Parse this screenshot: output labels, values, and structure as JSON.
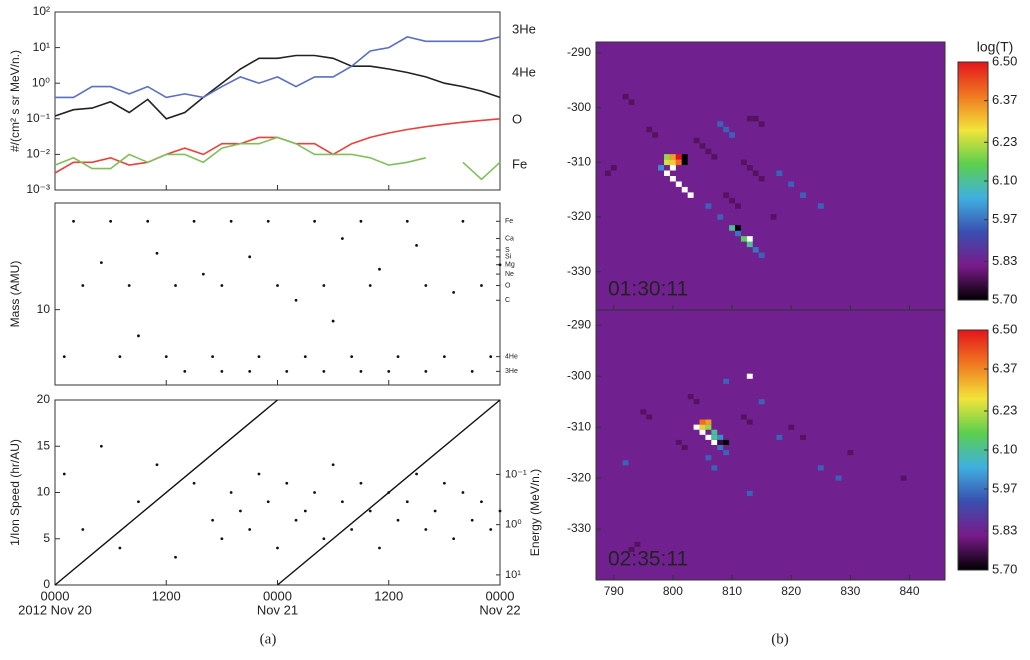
{
  "captions": [
    "(a)",
    "(b)"
  ],
  "chart_data": [
    {
      "type": "line",
      "y_label": "#/(cm² s sr MeV/n.)",
      "log_y": true,
      "xlim": [
        0,
        48
      ],
      "xticks": [
        0,
        12,
        24,
        36,
        48
      ],
      "ylim": [
        0.001,
        100
      ],
      "yticks": [
        {
          "value": 0.001,
          "label": "10⁻³"
        },
        {
          "value": 0.01,
          "label": "10⁻²"
        },
        {
          "value": 0.1,
          "label": "10⁻¹"
        },
        {
          "value": 1,
          "label": "10⁰"
        },
        {
          "value": 10,
          "label": "10¹"
        },
        {
          "value": 100,
          "label": "10²"
        }
      ],
      "x": [
        0,
        2,
        4,
        6,
        8,
        10,
        12,
        14,
        16,
        18,
        20,
        22,
        24,
        26,
        28,
        30,
        32,
        34,
        36,
        38,
        40,
        42,
        44,
        46,
        48
      ],
      "series": [
        {
          "name": "3He",
          "color": "#222222",
          "values": [
            0.12,
            0.18,
            0.2,
            0.3,
            0.15,
            0.35,
            0.1,
            0.15,
            0.4,
            1.0,
            2.5,
            5,
            5,
            6,
            6,
            5,
            3,
            3,
            2.5,
            2,
            1.5,
            1,
            0.8,
            0.6,
            0.4
          ]
        },
        {
          "name": "4He",
          "color": "#5a6fc0",
          "values": [
            0.4,
            0.4,
            0.8,
            0.8,
            0.5,
            0.8,
            0.4,
            0.5,
            0.4,
            0.8,
            1.5,
            1.0,
            1.5,
            0.8,
            1.5,
            1.5,
            3,
            8,
            10,
            20,
            15,
            15,
            15,
            15,
            20
          ]
        },
        {
          "name": "O",
          "color": "#e8423a",
          "values": [
            0.003,
            0.006,
            0.006,
            0.008,
            0.005,
            0.006,
            0.01,
            0.015,
            0.01,
            0.02,
            0.02,
            0.03,
            0.03,
            0.02,
            0.02,
            0.01,
            0.02,
            0.03,
            0.04,
            0.05,
            0.06,
            0.07,
            0.08,
            0.09,
            0.1
          ]
        },
        {
          "name": "Fe",
          "color": "#7fc05a",
          "values": [
            0.005,
            0.008,
            0.004,
            0.004,
            0.01,
            0.006,
            0.01,
            0.01,
            0.006,
            0.015,
            0.02,
            0.02,
            0.03,
            0.02,
            0.01,
            0.01,
            0.01,
            0.008,
            0.005,
            0.006,
            0.008,
            null,
            0.006,
            0.002,
            0.006
          ]
        }
      ]
    },
    {
      "type": "scatter",
      "y_label": "Mass (AMU)",
      "log_y": true,
      "color": "#111111",
      "xlim": [
        0,
        48
      ],
      "xticks": [
        0,
        12,
        24,
        36,
        48
      ],
      "ylim": [
        2.3,
        80
      ],
      "yticks": [
        10
      ],
      "y2ticks": [
        {
          "value": 56,
          "label": "Fe"
        },
        {
          "value": 40,
          "label": "Ca"
        },
        {
          "value": 32,
          "label": "S"
        },
        {
          "value": 28,
          "label": "Si"
        },
        {
          "value": 24,
          "label": "Mg"
        },
        {
          "value": 20,
          "label": "Ne"
        },
        {
          "value": 16,
          "label": "O"
        },
        {
          "value": 12,
          "label": "C"
        },
        {
          "value": 4,
          "label": "4He"
        },
        {
          "value": 3,
          "label": "3He"
        }
      ],
      "x": [
        2,
        6,
        10,
        15,
        19,
        23,
        28,
        33,
        38,
        44,
        3,
        8,
        13,
        18,
        24,
        29,
        34,
        40,
        46,
        1,
        7,
        12,
        17,
        22,
        27,
        32,
        37,
        42,
        47,
        14,
        18,
        21,
        25,
        29,
        33,
        36,
        40,
        45,
        5,
        11,
        16,
        21,
        26,
        31,
        35,
        39,
        43,
        48,
        9,
        30
      ],
      "y": [
        56,
        56,
        56,
        56,
        56,
        56,
        56,
        56,
        56,
        56,
        16,
        16,
        16,
        16,
        16,
        16,
        16,
        16,
        16,
        4,
        4,
        4,
        4,
        4,
        4,
        4,
        4,
        4,
        4,
        3,
        3,
        3,
        3,
        3,
        3,
        3,
        3,
        3,
        25,
        30,
        20,
        28,
        12,
        40,
        22,
        35,
        14,
        24,
        6,
        8
      ]
    },
    {
      "type": "scatter",
      "y_label": "1/Ion Speed (hr/AU)",
      "y2_label": "Energy (MeV/n.)",
      "color": "#111111",
      "xlim": [
        0,
        48
      ],
      "xticks": [
        {
          "value": 0,
          "label": "0000"
        },
        {
          "value": 12,
          "label": "1200"
        },
        {
          "value": 24,
          "label": "0000"
        },
        {
          "value": 36,
          "label": "1200"
        },
        {
          "value": 48,
          "label": "0000"
        }
      ],
      "xticks_dates": [
        {
          "value": 0,
          "label": "2012 Nov 20"
        },
        {
          "value": 24,
          "label": "Nov 21"
        },
        {
          "value": 48,
          "label": "Nov 22"
        }
      ],
      "ylim": [
        0,
        20
      ],
      "yticks": [
        0,
        5,
        10,
        15,
        20
      ],
      "log_y2": true,
      "y2lim": [
        0.0033,
        15.9
      ],
      "y2ticks": [
        {
          "value": 0.1,
          "label": "10⁻¹"
        },
        {
          "value": 1,
          "label": "10⁰"
        },
        {
          "value": 10,
          "label": "10¹"
        }
      ],
      "lines": [
        {
          "x": [
            0,
            24
          ],
          "y": [
            0,
            20
          ]
        },
        {
          "x": [
            24,
            48
          ],
          "y": [
            0,
            20
          ]
        }
      ],
      "x": [
        1,
        3,
        5,
        7,
        9,
        11,
        13,
        15,
        17,
        18,
        19,
        20,
        21,
        22,
        23,
        24,
        25,
        26,
        27,
        28,
        29,
        30,
        31,
        32,
        33,
        34,
        35,
        36,
        37,
        38,
        39,
        40,
        41,
        42,
        43,
        44,
        45,
        46,
        47,
        48
      ],
      "y": [
        12,
        6,
        15,
        4,
        9,
        13,
        3,
        11,
        7,
        5,
        10,
        8,
        6,
        12,
        9,
        4,
        11,
        7,
        8,
        10,
        5,
        13,
        9,
        6,
        11,
        8,
        4,
        10,
        7,
        9,
        12,
        6,
        8,
        11,
        5,
        10,
        7,
        9,
        6,
        8
      ]
    },
    {
      "type": "heatmap",
      "time_label": "01:30:11",
      "colorbar_title": "log(T)",
      "xlim": [
        787,
        846
      ],
      "xticks": [
        790,
        800,
        810,
        820,
        830,
        840
      ],
      "ylim": [
        -337,
        -288
      ],
      "yticks": [
        -290,
        -300,
        -310,
        -320,
        -330
      ],
      "zlim": [
        5.7,
        6.5
      ],
      "zticks": [
        {
          "value": 5.7,
          "label": "5.70"
        },
        {
          "value": 5.83,
          "label": "5.83"
        },
        {
          "value": 5.97,
          "label": "5.97"
        },
        {
          "value": 6.1,
          "label": "6.10"
        },
        {
          "value": 6.23,
          "label": "6.23"
        },
        {
          "value": 6.37,
          "label": "6.37"
        },
        {
          "value": 6.5,
          "label": "6.50"
        }
      ],
      "colormap": [
        "#000000",
        "#7a1a8a",
        "#3a4fb0",
        "#3fb0e0",
        "#5ccf4e",
        "#f2e43a",
        "#f07a20",
        "#e3151b"
      ],
      "above_color": "#ffffff",
      "background_value": 5.83,
      "x": [
        792,
        793,
        796,
        797,
        804,
        805,
        806,
        807,
        812,
        813,
        814,
        815,
        790,
        789,
        809,
        810,
        811,
        813,
        814,
        815,
        817,
        808,
        809,
        810,
        818,
        820,
        822,
        825,
        806,
        808,
        799,
        800,
        801,
        802,
        800,
        801,
        802,
        799,
        800,
        799,
        800,
        801,
        802,
        803,
        798,
        810,
        811,
        812,
        813,
        814,
        815,
        811,
        813
      ],
      "y": [
        -298,
        -299,
        -304,
        -305,
        -306,
        -307,
        -308,
        -309,
        -310,
        -311,
        -312,
        -313,
        -311,
        -312,
        -316,
        -317,
        -318,
        -302,
        -302,
        -303,
        -320,
        -303,
        -304,
        -305,
        -312,
        -314,
        -316,
        -318,
        -318,
        -320,
        -309,
        -309,
        -309,
        -309,
        -310,
        -310,
        -310,
        -310,
        -311,
        -312,
        -313,
        -314,
        -315,
        -316,
        -311,
        -322,
        -323,
        -324,
        -325,
        -326,
        -327,
        -322,
        -324
      ],
      "values": [
        5.78,
        5.78,
        5.78,
        5.78,
        5.78,
        5.78,
        5.78,
        5.78,
        5.78,
        5.78,
        5.78,
        5.78,
        5.78,
        5.78,
        5.78,
        5.78,
        5.78,
        5.78,
        5.78,
        5.78,
        5.78,
        5.95,
        5.95,
        5.95,
        5.95,
        5.95,
        5.95,
        5.95,
        5.95,
        5.95,
        6.2,
        6.35,
        6.5,
        5.7,
        6.3,
        6.4,
        5.7,
        6.25,
        6.6,
        6.6,
        6.6,
        6.6,
        6.6,
        6.6,
        6.0,
        6.1,
        5.97,
        6.15,
        6.1,
        5.97,
        5.95,
        5.7,
        6.6
      ]
    },
    {
      "type": "heatmap",
      "time_label": "02:35:11",
      "xlim": [
        787,
        846
      ],
      "xticks": [
        790,
        800,
        810,
        820,
        830,
        840
      ],
      "ylim": [
        -340,
        -287
      ],
      "yticks": [
        -290,
        -300,
        -310,
        -320,
        -330
      ],
      "zlim": [
        5.7,
        6.5
      ],
      "zticks": [
        {
          "value": 5.7,
          "label": "5.70"
        },
        {
          "value": 5.83,
          "label": "5.83"
        },
        {
          "value": 5.97,
          "label": "5.97"
        },
        {
          "value": 6.1,
          "label": "6.10"
        },
        {
          "value": 6.23,
          "label": "6.23"
        },
        {
          "value": 6.37,
          "label": "6.37"
        },
        {
          "value": 6.5,
          "label": "6.50"
        }
      ],
      "colormap": [
        "#000000",
        "#7a1a8a",
        "#3a4fb0",
        "#3fb0e0",
        "#5ccf4e",
        "#f2e43a",
        "#f07a20",
        "#e3151b"
      ],
      "above_color": "#ffffff",
      "background_value": 5.83,
      "x": [
        803,
        804,
        801,
        802,
        795,
        796,
        812,
        813,
        820,
        822,
        830,
        839,
        793,
        794,
        809,
        815,
        818,
        825,
        828,
        806,
        807,
        813,
        792,
        813,
        805,
        806,
        805,
        806,
        807,
        808,
        809,
        804,
        805,
        806,
        807,
        808,
        809,
        807,
        808
      ],
      "y": [
        -304,
        -305,
        -313,
        -314,
        -307,
        -308,
        -308,
        -309,
        -310,
        -312,
        -315,
        -320,
        -334,
        -333,
        -301,
        -305,
        -312,
        -318,
        -320,
        -316,
        -318,
        -323,
        -317,
        -300,
        -309,
        -309,
        -310,
        -310,
        -311,
        -312,
        -313,
        -310,
        -311,
        -312,
        -313,
        -314,
        -315,
        -312,
        -313
      ],
      "values": [
        5.78,
        5.78,
        5.78,
        5.78,
        5.78,
        5.78,
        5.78,
        5.78,
        5.78,
        5.78,
        5.78,
        5.78,
        5.78,
        5.78,
        5.95,
        5.95,
        5.95,
        5.95,
        5.95,
        5.95,
        5.95,
        5.95,
        5.95,
        6.6,
        6.4,
        6.35,
        6.3,
        6.2,
        6.1,
        6.0,
        5.7,
        6.6,
        6.6,
        6.6,
        6.6,
        5.97,
        5.95,
        6.1,
        5.75
      ]
    }
  ]
}
